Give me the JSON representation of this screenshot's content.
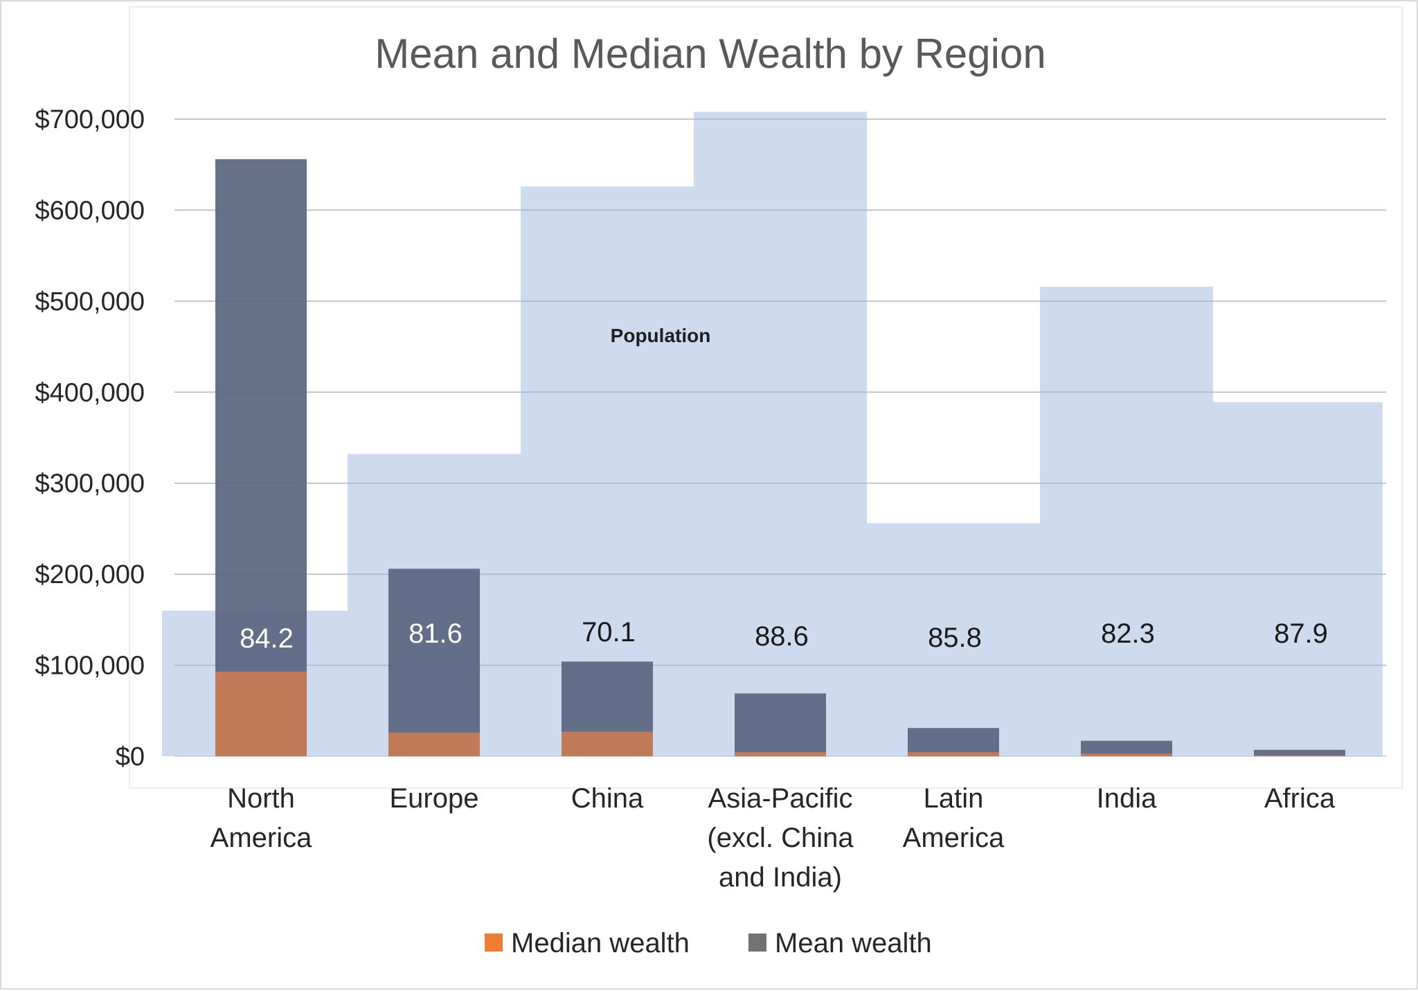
{
  "chart_data": {
    "type": "bar",
    "title": "Mean and Median Wealth by Region",
    "categories": [
      [
        "North",
        "America"
      ],
      [
        "Europe"
      ],
      [
        "China"
      ],
      [
        "Asia-Pacific",
        "(excl. China",
        "and India)"
      ],
      [
        "Latin",
        "America"
      ],
      [
        "India"
      ],
      [
        "Africa"
      ]
    ],
    "series": [
      {
        "name": "Median wealth",
        "color": "#ed7d31",
        "values": [
          93000,
          26000,
          27000,
          4500,
          4500,
          3000,
          1000
        ]
      },
      {
        "name": "Mean wealth",
        "color": "#767171",
        "values": [
          656000,
          206000,
          104000,
          69000,
          31000,
          17000,
          7000
        ]
      }
    ],
    "population_area": {
      "annotation": "Population",
      "color": "#b4c7e7",
      "relative_heights": [
        160000,
        332000,
        626000,
        708000,
        256000,
        516000,
        389000
      ]
    },
    "data_labels": [
      "84.2",
      "81.6",
      "70.1",
      "88.6",
      "85.8",
      "82.3",
      "87.9"
    ],
    "y_ticks": [
      "$0",
      "$100,000",
      "$200,000",
      "$300,000",
      "$400,000",
      "$500,000",
      "$600,000",
      "$700,000"
    ],
    "ylim": [
      0,
      700000
    ],
    "grid": true,
    "legend_position": "bottom"
  }
}
